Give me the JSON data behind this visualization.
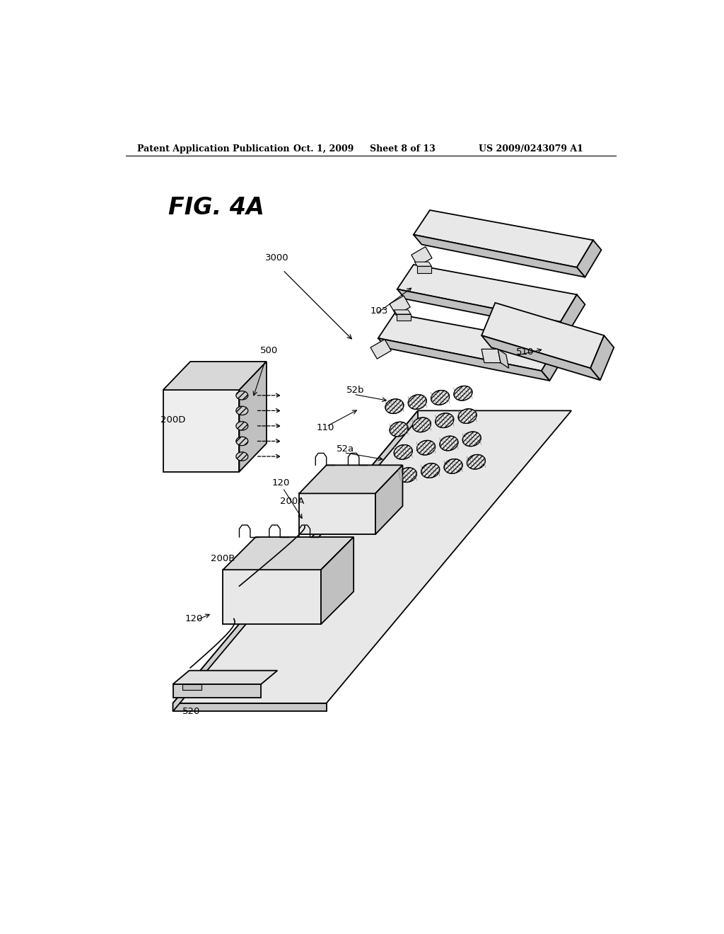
{
  "background_color": "#ffffff",
  "header_text": "Patent Application Publication",
  "header_date": "Oct. 1, 2009",
  "header_sheet": "Sheet 8 of 13",
  "header_patent": "US 2009/0243079 A1",
  "fig_label": "FIG. 4A",
  "line_color": "#000000",
  "face_light": "#f0f0f0",
  "face_mid": "#d8d8d8",
  "face_dark": "#b8b8b8"
}
